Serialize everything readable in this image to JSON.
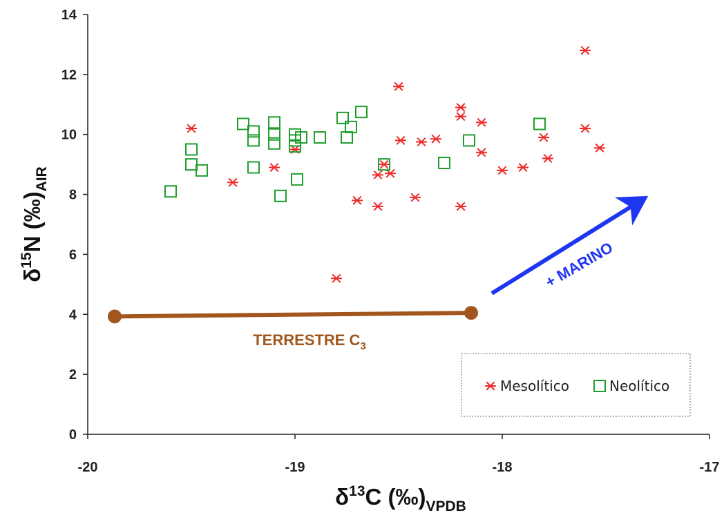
{
  "chart_data": {
    "type": "scatter",
    "title": "",
    "xlabel": {
      "prefix": "δ",
      "sup": "13",
      "main": "C (‰)",
      "sub": "VPDB"
    },
    "ylabel": {
      "prefix": "δ",
      "sup": "15",
      "main": "N (‰)",
      "sub": "AIR"
    },
    "xlim": [
      -20,
      -17
    ],
    "ylim": [
      0,
      14
    ],
    "xticks": [
      -20,
      -19,
      -18,
      -17
    ],
    "yticks": [
      0,
      2,
      4,
      6,
      8,
      10,
      12,
      14
    ],
    "grid": false,
    "legend": "bottom-right",
    "series": [
      {
        "name": "Mesolítico",
        "marker": "asterisk",
        "color": "#ee2a2a",
        "points": [
          [
            -19.5,
            10.2
          ],
          [
            -19.3,
            8.4
          ],
          [
            -19.1,
            8.9
          ],
          [
            -19.0,
            9.5
          ],
          [
            -18.8,
            5.2
          ],
          [
            -18.7,
            7.8
          ],
          [
            -18.6,
            7.6
          ],
          [
            -18.6,
            8.65
          ],
          [
            -18.57,
            9.0
          ],
          [
            -18.54,
            8.7
          ],
          [
            -18.5,
            11.6
          ],
          [
            -18.49,
            9.8
          ],
          [
            -18.42,
            7.9
          ],
          [
            -18.39,
            9.75
          ],
          [
            -18.32,
            9.85
          ],
          [
            -18.2,
            10.9
          ],
          [
            -18.2,
            10.6
          ],
          [
            -18.2,
            7.6
          ],
          [
            -18.1,
            10.4
          ],
          [
            -18.1,
            9.4
          ],
          [
            -18.0,
            8.8
          ],
          [
            -17.9,
            8.9
          ],
          [
            -17.8,
            9.9
          ],
          [
            -17.78,
            9.2
          ],
          [
            -17.6,
            12.8
          ],
          [
            -17.6,
            10.2
          ],
          [
            -17.53,
            9.55
          ]
        ]
      },
      {
        "name": "Neolítico",
        "marker": "square",
        "color": "#1f9e2d",
        "points": [
          [
            -19.6,
            8.1
          ],
          [
            -19.5,
            9.5
          ],
          [
            -19.5,
            9.0
          ],
          [
            -19.45,
            8.8
          ],
          [
            -19.25,
            10.35
          ],
          [
            -19.2,
            10.1
          ],
          [
            -19.2,
            9.8
          ],
          [
            -19.2,
            8.9
          ],
          [
            -19.1,
            10.4
          ],
          [
            -19.1,
            10.0
          ],
          [
            -19.1,
            9.7
          ],
          [
            -19.07,
            7.95
          ],
          [
            -19.0,
            10.0
          ],
          [
            -19.0,
            9.8
          ],
          [
            -19.0,
            9.6
          ],
          [
            -18.99,
            8.5
          ],
          [
            -18.97,
            9.9
          ],
          [
            -18.88,
            9.9
          ],
          [
            -18.77,
            10.55
          ],
          [
            -18.75,
            9.9
          ],
          [
            -18.73,
            10.25
          ],
          [
            -18.68,
            10.75
          ],
          [
            -18.57,
            9.0
          ],
          [
            -18.28,
            9.05
          ],
          [
            -18.16,
            9.8
          ],
          [
            -17.82,
            10.35
          ]
        ]
      }
    ],
    "annotations": {
      "terrestrial": {
        "label_main": "TERRESTRE C",
        "label_sub": "3",
        "x1": -19.87,
        "y1": 3.93,
        "x2": -18.15,
        "y2": 4.05,
        "color": "#a0561d"
      },
      "marine": {
        "label": "+ MARINO",
        "x1": -18.05,
        "y1": 4.7,
        "x2": -17.33,
        "y2": 7.8,
        "color": "#1f36f0"
      }
    }
  }
}
